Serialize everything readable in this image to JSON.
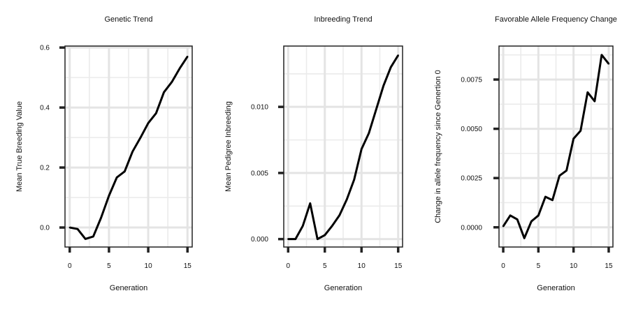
{
  "chart_data": [
    {
      "type": "line",
      "title": "Genetic Trend",
      "xlabel": "Generation",
      "ylabel": "Mean True Breeding Value",
      "xlim": [
        -0.6,
        15.6
      ],
      "ylim": [
        -0.065,
        0.605
      ],
      "xticks": [
        0,
        5,
        10,
        15
      ],
      "xtick_labels": [
        "0",
        "5",
        "10",
        "15"
      ],
      "yticks": [
        0.0,
        0.2,
        0.4,
        0.6
      ],
      "ytick_labels": [
        "0.0",
        "0.2",
        "0.4",
        "0.6"
      ],
      "grid": true,
      "color": "#000000",
      "x": [
        0,
        1,
        2,
        3,
        4,
        5,
        6,
        7,
        8,
        9,
        10,
        11,
        12,
        13,
        14,
        15
      ],
      "y": [
        0.0,
        -0.005,
        -0.038,
        -0.03,
        0.033,
        0.106,
        0.167,
        0.187,
        0.253,
        0.299,
        0.348,
        0.381,
        0.451,
        0.485,
        0.53,
        0.57
      ]
    },
    {
      "type": "line",
      "title": "Inbreeding Trend",
      "xlabel": "Generation",
      "ylabel": "Mean Pedigree Inbreeding",
      "xlim": [
        -0.6,
        15.6
      ],
      "ylim": [
        -0.0006,
        0.0146
      ],
      "xticks": [
        0,
        5,
        10,
        15
      ],
      "xtick_labels": [
        "0",
        "5",
        "10",
        "15"
      ],
      "yticks": [
        0.0,
        0.005,
        0.01
      ],
      "ytick_labels": [
        "0.000",
        "0.005",
        "0.010"
      ],
      "grid": true,
      "color": "#000000",
      "x": [
        0,
        1,
        2,
        3,
        4,
        5,
        6,
        7,
        8,
        9,
        10,
        11,
        12,
        13,
        14,
        15
      ],
      "y": [
        0.0,
        0.0,
        0.001,
        0.0027,
        0.0,
        0.0003,
        0.001,
        0.0018,
        0.003,
        0.0045,
        0.0068,
        0.008,
        0.0098,
        0.0116,
        0.013,
        0.0139
      ]
    },
    {
      "type": "line",
      "title": "Favorable Allele Frequency Change",
      "xlabel": "Generation",
      "ylabel": "Change in allele frequency since Genertion 0",
      "xlim": [
        -0.6,
        15.6
      ],
      "ylim": [
        -0.001,
        0.0092
      ],
      "xticks": [
        0,
        5,
        10,
        15
      ],
      "xtick_labels": [
        "0",
        "5",
        "10",
        "15"
      ],
      "yticks": [
        0.0,
        0.0025,
        0.005,
        0.0075
      ],
      "ytick_labels": [
        "0.0000",
        "0.0025",
        "0.0050",
        "0.0075"
      ],
      "grid": true,
      "color": "#000000",
      "x": [
        0,
        1,
        2,
        3,
        4,
        5,
        6,
        7,
        8,
        9,
        10,
        11,
        12,
        13,
        14,
        15
      ],
      "y": [
        5e-05,
        0.0006,
        0.0004,
        -0.00055,
        0.0003,
        0.0006,
        0.00155,
        0.00138,
        0.00262,
        0.00288,
        0.0045,
        0.0049,
        0.00685,
        0.0064,
        0.00875,
        0.0083
      ]
    }
  ]
}
